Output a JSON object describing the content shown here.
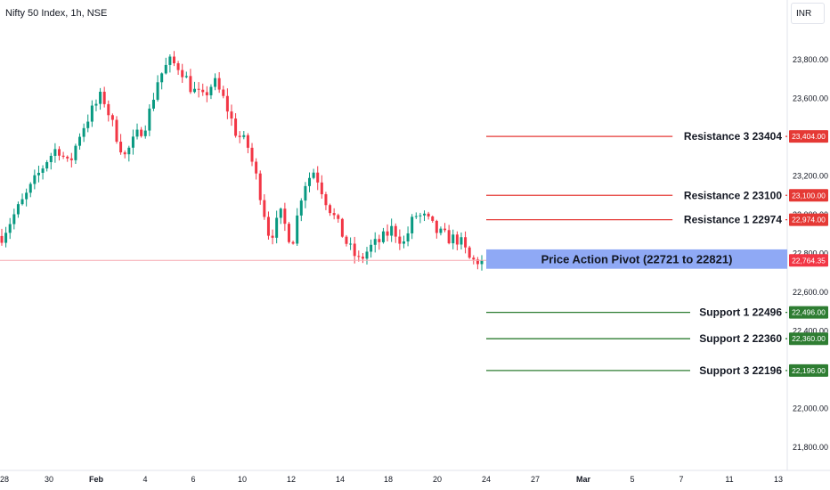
{
  "header": {
    "title": "Nifty 50 Index, 1h, NSE",
    "currency": "INR"
  },
  "chart_data": {
    "type": "candlestick",
    "yaxis": {
      "ticks": [
        21800,
        22000,
        22200,
        22400,
        22600,
        22800,
        23000,
        23200,
        23400,
        23600,
        23800
      ],
      "tick_labels": [
        "21,800.00",
        "22,000.00",
        "22,200.00",
        "22,400.00",
        "22,600.00",
        "22,800.00",
        "23,000.00",
        "23,200.00",
        "23,400.00",
        "23,600.00",
        "23,800.00"
      ],
      "ylim": [
        21700,
        24050
      ]
    },
    "xaxis": {
      "tick_labels": [
        "28",
        "30",
        "Feb",
        "4",
        "6",
        "10",
        "12",
        "14",
        "18",
        "20",
        "24",
        "27",
        "Mar",
        "5",
        "7",
        "11",
        "13"
      ],
      "bold": [
        "Feb",
        "Mar"
      ]
    },
    "last_price": {
      "value": 22764.35,
      "label": "22,764.35"
    },
    "levels": [
      {
        "name": "Resistance 3 23404",
        "value": 23404,
        "label": "23,404.00",
        "kind": "resistance"
      },
      {
        "name": "Resistance 2 23100",
        "value": 23100,
        "label": "23,100.00",
        "kind": "resistance"
      },
      {
        "name": "Resistance 1 22974",
        "value": 22974,
        "label": "22,974.00",
        "kind": "resistance"
      },
      {
        "name": "Support 1 22496",
        "value": 22496,
        "label": "22,496.00",
        "kind": "support"
      },
      {
        "name": "Support 2 22360",
        "value": 22360,
        "label": "22,360.00",
        "kind": "support"
      },
      {
        "name": "Support 3 22196",
        "value": 22196,
        "label": "22,196.00",
        "kind": "support"
      }
    ],
    "pivot_zone": {
      "label": "Price Action Pivot (22721 to 22821)",
      "low": 22721,
      "high": 22821
    },
    "price_path": [
      22890,
      22990,
      23080,
      23180,
      23280,
      23350,
      23250,
      23420,
      23530,
      23620,
      23450,
      23300,
      23400,
      23480,
      23700,
      23790,
      23760,
      23650,
      23600,
      23690,
      23580,
      23420,
      23360,
      23150,
      22880,
      23000,
      22850,
      23150,
      23230,
      23080,
      22960,
      22840,
      22760,
      22830,
      22870,
      22930,
      22850,
      23000,
      22980,
      22910,
      22880,
      22870,
      22760,
      22764
    ],
    "colors": {
      "up": "#089981",
      "down": "#f23645",
      "resistance": "#e53935",
      "support": "#2e7d32",
      "pivot": "#8fa9f5"
    }
  }
}
